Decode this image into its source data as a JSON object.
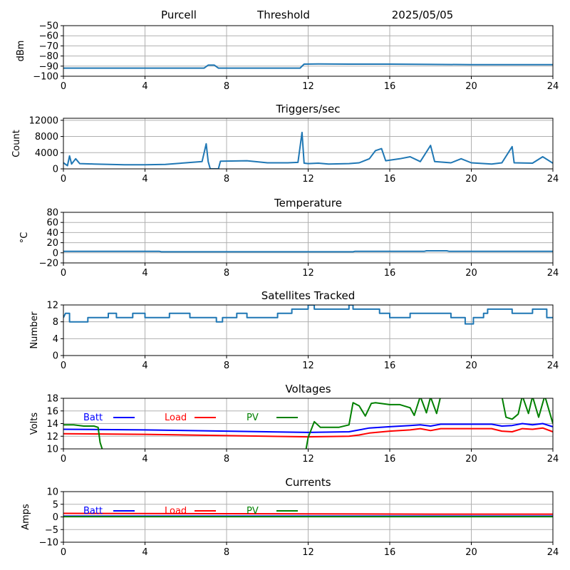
{
  "header": {
    "site": "Purcell",
    "label": "Threshold",
    "date": "2025/05/05"
  },
  "chart_data": [
    {
      "type": "line",
      "title": "",
      "xlabel": "",
      "ylabel": "dBm",
      "xlim": [
        0,
        24
      ],
      "ylim": [
        -100,
        -50
      ],
      "xticks": [
        0,
        4,
        8,
        12,
        16,
        20,
        24
      ],
      "yticks": [
        -100,
        -90,
        -80,
        -70,
        -60,
        -50
      ],
      "ytick_labels": [
        "−100",
        "−90",
        "−80",
        "−70",
        "−60",
        "−50"
      ],
      "grid": true,
      "series": [
        {
          "color": "#1f77b4",
          "points": [
            [
              0,
              -92
            ],
            [
              6.9,
              -92
            ],
            [
              7.1,
              -89
            ],
            [
              7.4,
              -89
            ],
            [
              7.6,
              -92
            ],
            [
              11.6,
              -92
            ],
            [
              11.8,
              -88
            ],
            [
              12.5,
              -87.8
            ],
            [
              14,
              -88
            ],
            [
              16,
              -88
            ],
            [
              18,
              -88.3
            ],
            [
              20,
              -88.5
            ],
            [
              22,
              -88.5
            ],
            [
              24,
              -88.5
            ]
          ]
        }
      ]
    },
    {
      "type": "line",
      "title": "Triggers/sec",
      "xlabel": "",
      "ylabel": "Count",
      "xlim": [
        0,
        24
      ],
      "ylim": [
        0,
        12500
      ],
      "xticks": [
        0,
        4,
        8,
        12,
        16,
        20,
        24
      ],
      "yticks": [
        0,
        4000,
        8000,
        12000
      ],
      "ytick_labels": [
        "0",
        "4000",
        "8000",
        "12000"
      ],
      "grid": true,
      "series": [
        {
          "color": "#1f77b4",
          "points": [
            [
              0,
              1500
            ],
            [
              0.2,
              800
            ],
            [
              0.3,
              3200
            ],
            [
              0.4,
              1200
            ],
            [
              0.6,
              2500
            ],
            [
              0.8,
              1300
            ],
            [
              1.5,
              1200
            ],
            [
              3,
              1000
            ],
            [
              4,
              1000
            ],
            [
              5,
              1100
            ],
            [
              6,
              1500
            ],
            [
              6.8,
              1800
            ],
            [
              7,
              6200
            ],
            [
              7.1,
              1800
            ],
            [
              7.2,
              0
            ],
            [
              7.6,
              0
            ],
            [
              7.7,
              1900
            ],
            [
              9,
              2000
            ],
            [
              10,
              1500
            ],
            [
              11,
              1500
            ],
            [
              11.5,
              1600
            ],
            [
              11.7,
              9000
            ],
            [
              11.8,
              1400
            ],
            [
              12,
              1300
            ],
            [
              12.5,
              1400
            ],
            [
              13,
              1200
            ],
            [
              14,
              1300
            ],
            [
              14.5,
              1500
            ],
            [
              15,
              2500
            ],
            [
              15.3,
              4500
            ],
            [
              15.6,
              5000
            ],
            [
              15.8,
              2000
            ],
            [
              16.5,
              2500
            ],
            [
              17,
              3000
            ],
            [
              17.5,
              1800
            ],
            [
              18,
              5800
            ],
            [
              18.2,
              1800
            ],
            [
              19,
              1500
            ],
            [
              19.5,
              2500
            ],
            [
              20,
              1500
            ],
            [
              21,
              1200
            ],
            [
              21.5,
              1500
            ],
            [
              22,
              5500
            ],
            [
              22.1,
              1500
            ],
            [
              23,
              1400
            ],
            [
              23.5,
              3000
            ],
            [
              24,
              1400
            ]
          ]
        }
      ]
    },
    {
      "type": "line",
      "title": "Temperature",
      "xlabel": "",
      "ylabel": "°C",
      "xlim": [
        0,
        24
      ],
      "ylim": [
        -20,
        80
      ],
      "xticks": [
        0,
        4,
        8,
        12,
        16,
        20,
        24
      ],
      "yticks": [
        -20,
        0,
        20,
        40,
        60,
        80
      ],
      "ytick_labels": [
        "−20",
        "0",
        "20",
        "40",
        "60",
        "80"
      ],
      "grid": true,
      "series": [
        {
          "color": "#1f77b4",
          "points": [
            [
              0,
              3
            ],
            [
              4.7,
              3
            ],
            [
              4.8,
              2
            ],
            [
              14.2,
              2
            ],
            [
              14.3,
              3
            ],
            [
              17.7,
              3
            ],
            [
              17.8,
              4
            ],
            [
              18.8,
              4
            ],
            [
              18.9,
              3
            ],
            [
              24,
              3
            ]
          ]
        }
      ]
    },
    {
      "type": "line",
      "title": "Satellites Tracked",
      "xlabel": "",
      "ylabel": "Number",
      "xlim": [
        0,
        24
      ],
      "ylim": [
        0,
        12
      ],
      "xticks": [
        0,
        4,
        8,
        12,
        16,
        20,
        24
      ],
      "yticks": [
        0,
        4,
        8,
        12
      ],
      "ytick_labels": [
        "0",
        "4",
        "8",
        "12"
      ],
      "grid": true,
      "series": [
        {
          "color": "#1f77b4",
          "points": [
            [
              0,
              9
            ],
            [
              0.1,
              10
            ],
            [
              0.3,
              10
            ],
            [
              0.3,
              8
            ],
            [
              1.2,
              8
            ],
            [
              1.2,
              9
            ],
            [
              2.2,
              9
            ],
            [
              2.2,
              10
            ],
            [
              2.6,
              10
            ],
            [
              2.6,
              9
            ],
            [
              3.4,
              9
            ],
            [
              3.4,
              10
            ],
            [
              4,
              10
            ],
            [
              4,
              9
            ],
            [
              5.2,
              9
            ],
            [
              5.2,
              10
            ],
            [
              6.2,
              10
            ],
            [
              6.2,
              9
            ],
            [
              7.5,
              9
            ],
            [
              7.5,
              8
            ],
            [
              7.8,
              8
            ],
            [
              7.8,
              9
            ],
            [
              8.5,
              9
            ],
            [
              8.5,
              10
            ],
            [
              9,
              10
            ],
            [
              9,
              9
            ],
            [
              10.5,
              9
            ],
            [
              10.5,
              10
            ],
            [
              11.2,
              10
            ],
            [
              11.2,
              11
            ],
            [
              12,
              11
            ],
            [
              12,
              12
            ],
            [
              12.3,
              12
            ],
            [
              12.3,
              11
            ],
            [
              14,
              11
            ],
            [
              14,
              12
            ],
            [
              14.2,
              12
            ],
            [
              14.2,
              11
            ],
            [
              15.5,
              11
            ],
            [
              15.5,
              10
            ],
            [
              16,
              10
            ],
            [
              16,
              9
            ],
            [
              17,
              9
            ],
            [
              17,
              10
            ],
            [
              19,
              10
            ],
            [
              19,
              9
            ],
            [
              19.7,
              9
            ],
            [
              19.7,
              7.5
            ],
            [
              20.1,
              7.5
            ],
            [
              20.1,
              9
            ],
            [
              20.6,
              9
            ],
            [
              20.6,
              10
            ],
            [
              20.8,
              10
            ],
            [
              20.8,
              11
            ],
            [
              22,
              11
            ],
            [
              22,
              10
            ],
            [
              23,
              10
            ],
            [
              23,
              11
            ],
            [
              23.7,
              11
            ],
            [
              23.7,
              9
            ],
            [
              24,
              9
            ]
          ]
        }
      ]
    },
    {
      "type": "line",
      "title": "Voltages",
      "xlabel": "",
      "ylabel": "Volts",
      "xlim": [
        0,
        24
      ],
      "ylim": [
        10,
        18
      ],
      "xticks": [
        0,
        4,
        8,
        12,
        16,
        20,
        24
      ],
      "yticks": [
        10,
        12,
        14,
        16,
        18
      ],
      "ytick_labels": [
        "10",
        "12",
        "14",
        "16",
        "18"
      ],
      "grid": true,
      "legend": "inline-top",
      "series": [
        {
          "name": "Batt",
          "color": "#0000ff",
          "points": [
            [
              0,
              13.1
            ],
            [
              4,
              13
            ],
            [
              8,
              12.8
            ],
            [
              12,
              12.6
            ],
            [
              14,
              12.7
            ],
            [
              14.5,
              13
            ],
            [
              15,
              13.3
            ],
            [
              16,
              13.5
            ],
            [
              17,
              13.7
            ],
            [
              17.5,
              13.8
            ],
            [
              18,
              13.6
            ],
            [
              18.5,
              13.9
            ],
            [
              21,
              13.9
            ],
            [
              21.5,
              13.6
            ],
            [
              22,
              13.7
            ],
            [
              22.5,
              14
            ],
            [
              23,
              13.8
            ],
            [
              23.5,
              14
            ],
            [
              24,
              13.5
            ]
          ]
        },
        {
          "name": "Load",
          "color": "#ff0000",
          "points": [
            [
              0,
              12.4
            ],
            [
              4,
              12.3
            ],
            [
              8,
              12.1
            ],
            [
              12,
              11.9
            ],
            [
              14,
              12
            ],
            [
              14.5,
              12.2
            ],
            [
              15,
              12.5
            ],
            [
              16,
              12.8
            ],
            [
              17,
              13
            ],
            [
              17.5,
              13.2
            ],
            [
              18,
              12.9
            ],
            [
              18.5,
              13.2
            ],
            [
              21,
              13.2
            ],
            [
              21.5,
              12.8
            ],
            [
              22,
              12.7
            ],
            [
              22.5,
              13.2
            ],
            [
              23,
              13.1
            ],
            [
              23.5,
              13.3
            ],
            [
              24,
              12.7
            ]
          ]
        },
        {
          "name": "PV",
          "color": "#008000",
          "points": [
            [
              0,
              13.8
            ],
            [
              0.5,
              13.8
            ],
            [
              1,
              13.6
            ],
            [
              1.5,
              13.6
            ],
            [
              1.7,
              13.4
            ],
            [
              1.8,
              11
            ],
            [
              1.9,
              10
            ]
          ],
          "points2": [
            [
              11.9,
              10
            ],
            [
              12,
              11.8
            ],
            [
              12.3,
              14.3
            ],
            [
              12.6,
              13.4
            ],
            [
              13,
              13.4
            ],
            [
              13.5,
              13.4
            ],
            [
              14,
              13.8
            ],
            [
              14.2,
              17.3
            ],
            [
              14.5,
              16.8
            ],
            [
              14.8,
              15.2
            ],
            [
              15.1,
              17.2
            ],
            [
              15.3,
              17.3
            ],
            [
              16,
              17
            ],
            [
              16.5,
              17
            ],
            [
              17,
              16.5
            ],
            [
              17.2,
              15.3
            ],
            [
              17.5,
              18.3
            ],
            [
              17.8,
              15.7
            ],
            [
              18,
              18.2
            ],
            [
              18.3,
              15.6
            ],
            [
              18.5,
              18.4
            ]
          ],
          "points3": [
            [
              21.5,
              18.3
            ],
            [
              21.7,
              15
            ],
            [
              22,
              14.7
            ],
            [
              22.3,
              15.5
            ],
            [
              22.5,
              18.4
            ],
            [
              22.8,
              15.6
            ],
            [
              23,
              18.3
            ],
            [
              23.3,
              15
            ],
            [
              23.6,
              18.4
            ],
            [
              24,
              14
            ]
          ]
        }
      ]
    },
    {
      "type": "line",
      "title": "Currents",
      "xlabel": "",
      "ylabel": "Amps",
      "xlim": [
        0,
        24
      ],
      "ylim": [
        -10,
        10
      ],
      "xticks": [
        0,
        4,
        8,
        12,
        16,
        20,
        24
      ],
      "yticks": [
        -10,
        -5,
        0,
        5,
        10
      ],
      "ytick_labels": [
        "−10",
        "−5",
        "0",
        "5",
        "10"
      ],
      "grid": true,
      "legend": "inline-top",
      "series": [
        {
          "name": "Batt",
          "color": "#0000ff",
          "points": [
            [
              0,
              0.3
            ],
            [
              24,
              0.3
            ]
          ]
        },
        {
          "name": "Load",
          "color": "#ff0000",
          "points": [
            [
              0,
              1.4
            ],
            [
              6,
              1.3
            ],
            [
              12,
              1.2
            ],
            [
              18,
              1.1
            ],
            [
              24,
              1.1
            ]
          ]
        },
        {
          "name": "PV",
          "color": "#008000",
          "points": [
            [
              0,
              0.1
            ],
            [
              24,
              0.1
            ]
          ]
        }
      ]
    }
  ]
}
